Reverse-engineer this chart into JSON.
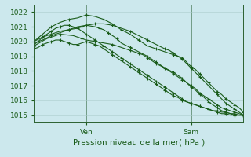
{
  "title": "",
  "xlabel": "Pression niveau de la mer( hPa )",
  "background_color": "#cce8ed",
  "grid_color": "#aacccc",
  "line_color": "#1a5c1a",
  "axis_color": "#2a6030",
  "text_color": "#1a5c1a",
  "ylim": [
    1014.5,
    1022.5
  ],
  "yticks": [
    1015,
    1016,
    1017,
    1018,
    1019,
    1020,
    1021,
    1022
  ],
  "ven_x": 24,
  "sam_x": 72,
  "xlim": [
    0,
    96
  ],
  "series": [
    {
      "x": [
        0,
        2,
        4,
        6,
        8,
        10,
        12,
        14,
        16,
        18,
        20,
        22,
        24,
        26,
        28,
        30,
        32,
        34,
        36,
        38,
        40,
        42,
        44,
        46,
        48,
        50,
        52,
        54,
        56,
        58,
        60,
        62,
        64,
        66,
        68,
        70,
        72,
        74,
        76,
        78,
        80,
        82,
        84,
        86,
        88,
        90,
        92,
        94,
        96
      ],
      "y": [
        1019.5,
        1019.6,
        1019.8,
        1019.9,
        1020.0,
        1020.1,
        1020.1,
        1020.0,
        1019.9,
        1019.8,
        1019.8,
        1019.9,
        1020.0,
        1019.9,
        1019.8,
        1019.7,
        1019.5,
        1019.3,
        1019.1,
        1018.9,
        1018.7,
        1018.5,
        1018.3,
        1018.1,
        1017.9,
        1017.7,
        1017.5,
        1017.3,
        1017.1,
        1016.9,
        1016.7,
        1016.5,
        1016.3,
        1016.2,
        1016.0,
        1015.9,
        1015.8,
        1015.7,
        1015.6,
        1015.5,
        1015.4,
        1015.3,
        1015.3,
        1015.2,
        1015.2,
        1015.1,
        1015.1,
        1015.0,
        1015.0
      ]
    },
    {
      "x": [
        0,
        2,
        4,
        6,
        8,
        10,
        12,
        14,
        16,
        18,
        20,
        22,
        24,
        26,
        28,
        30,
        32,
        34,
        36,
        38,
        40,
        42,
        44,
        46,
        48,
        50,
        52,
        54,
        56,
        58,
        60,
        62,
        64,
        66,
        68,
        70,
        72,
        74,
        76,
        78,
        80,
        82,
        84,
        86,
        88,
        90,
        92,
        94,
        96
      ],
      "y": [
        1019.8,
        1020.0,
        1020.3,
        1020.5,
        1020.7,
        1020.9,
        1021.0,
        1021.1,
        1021.1,
        1021.0,
        1020.9,
        1020.7,
        1020.5,
        1020.3,
        1020.1,
        1019.9,
        1019.7,
        1019.5,
        1019.3,
        1019.1,
        1018.9,
        1018.7,
        1018.5,
        1018.3,
        1018.1,
        1017.9,
        1017.7,
        1017.5,
        1017.3,
        1017.1,
        1016.9,
        1016.7,
        1016.5,
        1016.3,
        1016.1,
        1015.9,
        1015.8,
        1015.7,
        1015.6,
        1015.5,
        1015.4,
        1015.3,
        1015.2,
        1015.1,
        1015.1,
        1015.0,
        1015.0,
        1015.0,
        1015.0
      ]
    },
    {
      "x": [
        0,
        4,
        8,
        12,
        16,
        20,
        24,
        28,
        32,
        36,
        40,
        44,
        48,
        52,
        56,
        60,
        64,
        66,
        68,
        70,
        72,
        74,
        76,
        78,
        80,
        82,
        84,
        86,
        88,
        90,
        92,
        94,
        96
      ],
      "y": [
        1020.0,
        1020.5,
        1021.0,
        1021.3,
        1021.5,
        1021.6,
        1021.8,
        1021.7,
        1021.5,
        1021.2,
        1020.8,
        1020.5,
        1020.1,
        1019.7,
        1019.5,
        1019.3,
        1019.1,
        1019.0,
        1018.9,
        1018.6,
        1018.3,
        1018.1,
        1017.8,
        1017.5,
        1017.2,
        1016.9,
        1016.6,
        1016.4,
        1016.1,
        1015.9,
        1015.7,
        1015.5,
        1015.2
      ]
    },
    {
      "x": [
        0,
        4,
        8,
        12,
        16,
        20,
        22,
        24,
        28,
        32,
        36,
        40,
        44,
        48,
        52,
        56,
        60,
        62,
        64,
        66,
        68,
        70,
        72,
        74,
        76,
        78,
        80,
        82,
        84,
        86,
        88,
        90,
        92,
        94,
        96
      ],
      "y": [
        1020.0,
        1020.3,
        1020.5,
        1020.7,
        1020.8,
        1020.9,
        1021.0,
        1021.1,
        1021.2,
        1021.2,
        1021.1,
        1020.9,
        1020.7,
        1020.4,
        1020.1,
        1019.8,
        1019.5,
        1019.4,
        1019.2,
        1019.0,
        1018.8,
        1018.5,
        1018.2,
        1017.9,
        1017.6,
        1017.3,
        1017.0,
        1016.7,
        1016.4,
        1016.1,
        1015.8,
        1015.6,
        1015.4,
        1015.2,
        1015.0
      ]
    },
    {
      "x": [
        0,
        4,
        8,
        12,
        16,
        20,
        24,
        28,
        30,
        32,
        34,
        36,
        38,
        40,
        44,
        48,
        52,
        54,
        56,
        58,
        60,
        62,
        64,
        66,
        68,
        70,
        72,
        74,
        76,
        78,
        80,
        82,
        84,
        86,
        88,
        90,
        92,
        94,
        96
      ],
      "y": [
        1019.9,
        1020.1,
        1020.4,
        1020.6,
        1020.8,
        1021.0,
        1021.1,
        1021.0,
        1020.9,
        1020.8,
        1020.6,
        1020.4,
        1020.2,
        1019.9,
        1019.6,
        1019.3,
        1019.0,
        1018.8,
        1018.6,
        1018.4,
        1018.2,
        1018.0,
        1017.8,
        1017.6,
        1017.4,
        1017.2,
        1016.9,
        1016.7,
        1016.4,
        1016.2,
        1015.9,
        1015.7,
        1015.5,
        1015.3,
        1015.2,
        1015.1,
        1015.0,
        1015.0,
        1015.0
      ]
    },
    {
      "x": [
        0,
        6,
        12,
        18,
        22,
        24,
        28,
        32,
        36,
        40,
        44,
        46,
        48,
        50,
        52,
        54,
        56,
        60,
        64,
        66,
        68,
        70,
        72,
        74,
        76,
        78,
        80,
        82,
        84,
        86,
        88,
        90,
        92,
        94,
        96
      ],
      "y": [
        1019.7,
        1020.2,
        1020.5,
        1020.4,
        1020.2,
        1020.1,
        1020.0,
        1019.9,
        1019.8,
        1019.6,
        1019.4,
        1019.3,
        1019.2,
        1019.1,
        1018.9,
        1018.7,
        1018.5,
        1018.2,
        1017.9,
        1017.7,
        1017.5,
        1017.2,
        1017.0,
        1016.8,
        1016.5,
        1016.3,
        1016.1,
        1015.9,
        1015.7,
        1015.5,
        1015.4,
        1015.3,
        1015.2,
        1015.1,
        1015.0
      ]
    }
  ]
}
